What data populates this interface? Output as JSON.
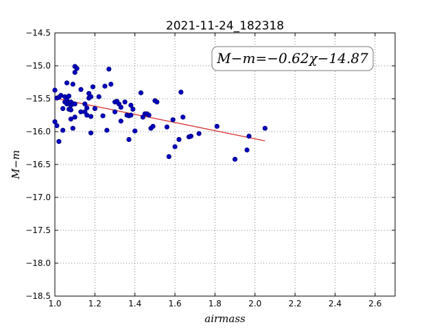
{
  "chart_data": {
    "type": "scatter",
    "title": "2021-11-24_182318",
    "xlabel": "airmass",
    "ylabel": "M−m",
    "xlim": [
      1.0,
      2.7
    ],
    "ylim": [
      -18.5,
      -14.5
    ],
    "x_ticks": [
      1.0,
      1.2,
      1.4,
      1.6,
      1.8,
      2.0,
      2.2,
      2.4,
      2.6
    ],
    "y_ticks": [
      -18.5,
      -18.0,
      -17.5,
      -17.0,
      -16.5,
      -16.0,
      -15.5,
      -15.0,
      -14.5
    ],
    "x_tick_labels": [
      "1.0",
      "1.2",
      "1.4",
      "1.6",
      "1.8",
      "2.0",
      "2.2",
      "2.4",
      "2.6"
    ],
    "y_tick_labels": [
      "−18.5",
      "−18.0",
      "−17.5",
      "−17.0",
      "−16.5",
      "−16.0",
      "−15.5",
      "−15.0",
      "−14.5"
    ],
    "grid": true,
    "annotation": "M−m=−0.62χ−14.87",
    "fit": {
      "slope": -0.62,
      "intercept": -14.87,
      "x_range": [
        1.0,
        2.05
      ],
      "color": "#d62020"
    },
    "point_color": "#0000c0",
    "series": [
      {
        "x": [
          1.0,
          1.0,
          1.01,
          1.01,
          1.02,
          1.02,
          1.03,
          1.04,
          1.04,
          1.05,
          1.05,
          1.06,
          1.06,
          1.06,
          1.07,
          1.07,
          1.07,
          1.08,
          1.08,
          1.08,
          1.08,
          1.09,
          1.09,
          1.09,
          1.1,
          1.1,
          1.1,
          1.1,
          1.11,
          1.13,
          1.13,
          1.15,
          1.15,
          1.16,
          1.16,
          1.17,
          1.17,
          1.18,
          1.18,
          1.18,
          1.19,
          1.2,
          1.22,
          1.24,
          1.25,
          1.26,
          1.27,
          1.28,
          1.3,
          1.3,
          1.31,
          1.32,
          1.33,
          1.33,
          1.35,
          1.36,
          1.37,
          1.37,
          1.38,
          1.38,
          1.39,
          1.4,
          1.43,
          1.44,
          1.45,
          1.46,
          1.47,
          1.48,
          1.49,
          1.5,
          1.51,
          1.56,
          1.57,
          1.59,
          1.6,
          1.62,
          1.63,
          1.64,
          1.67,
          1.68,
          1.72,
          1.81,
          1.9,
          1.96,
          1.97,
          2.05
        ],
        "y": [
          -15.37,
          -15.85,
          -15.91,
          -15.49,
          -15.48,
          -16.15,
          -15.45,
          -15.65,
          -15.98,
          -15.47,
          -15.55,
          -15.26,
          -15.5,
          -15.58,
          -15.46,
          -15.56,
          -15.66,
          -15.55,
          -15.6,
          -15.67,
          -15.81,
          -15.28,
          -15.58,
          -15.95,
          -15.1,
          -15.01,
          -15.58,
          -15.78,
          -15.04,
          -15.36,
          -15.7,
          -15.58,
          -15.7,
          -15.64,
          -15.75,
          -15.42,
          -15.49,
          -15.47,
          -15.77,
          -16.02,
          -15.32,
          -15.65,
          -15.47,
          -15.76,
          -15.31,
          -15.98,
          -15.05,
          -15.28,
          -15.55,
          -15.7,
          -15.54,
          -15.58,
          -15.63,
          -15.84,
          -15.55,
          -15.75,
          -16.12,
          -15.76,
          -15.6,
          -15.75,
          -15.66,
          -15.99,
          -15.41,
          -15.78,
          -15.73,
          -15.73,
          -15.75,
          -15.95,
          -15.92,
          -15.53,
          -15.55,
          -15.93,
          -16.38,
          -15.82,
          -16.23,
          -16.12,
          -15.4,
          -15.78,
          -16.08,
          -16.07,
          -16.03,
          -15.92,
          -16.42,
          -16.28,
          -16.07,
          -15.95
        ]
      }
    ]
  }
}
